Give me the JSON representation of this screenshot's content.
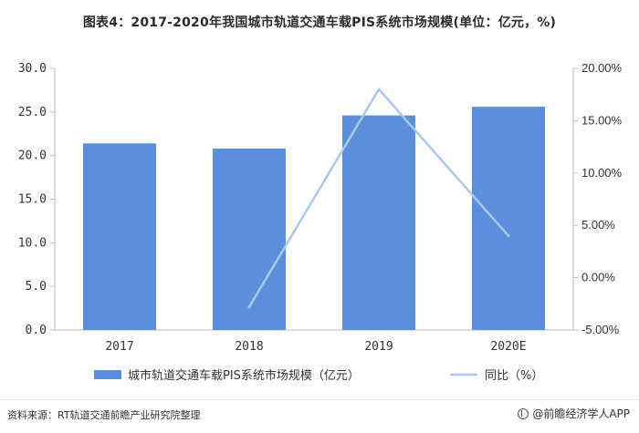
{
  "title": "图表4：2017-2020年我国城市轨道交通车载PIS系统市场规模(单位：亿元，%)",
  "footer": {
    "source": "资料来源：RT轨道交通前瞻产业研究院整理",
    "brand": "@前瞻经济学人APP"
  },
  "colors": {
    "bar": "#5b8fdc",
    "line": "#a9c8ec"
  },
  "chart_data": {
    "type": "bar",
    "categories": [
      "2017",
      "2018",
      "2019",
      "2020E"
    ],
    "series": [
      {
        "name": "城市轨道交通车载PIS系统市场规模（亿元）",
        "type": "bar",
        "axis": "left",
        "values": [
          21.4,
          20.8,
          24.6,
          25.6
        ]
      },
      {
        "name": "同比（%）",
        "type": "line",
        "axis": "right",
        "values": [
          null,
          -2.8,
          18.0,
          4.0
        ]
      }
    ],
    "y_left": {
      "lim": [
        0,
        30
      ],
      "ticks": [
        "0.0",
        "5.0",
        "10.0",
        "15.0",
        "20.0",
        "25.0",
        "30.0"
      ]
    },
    "y_right": {
      "lim": [
        -5,
        20
      ],
      "ticks": [
        "-5.00%",
        "0.00%",
        "5.00%",
        "10.00%",
        "15.00%",
        "20.00%"
      ]
    },
    "grid": false,
    "legend": "bottom"
  }
}
